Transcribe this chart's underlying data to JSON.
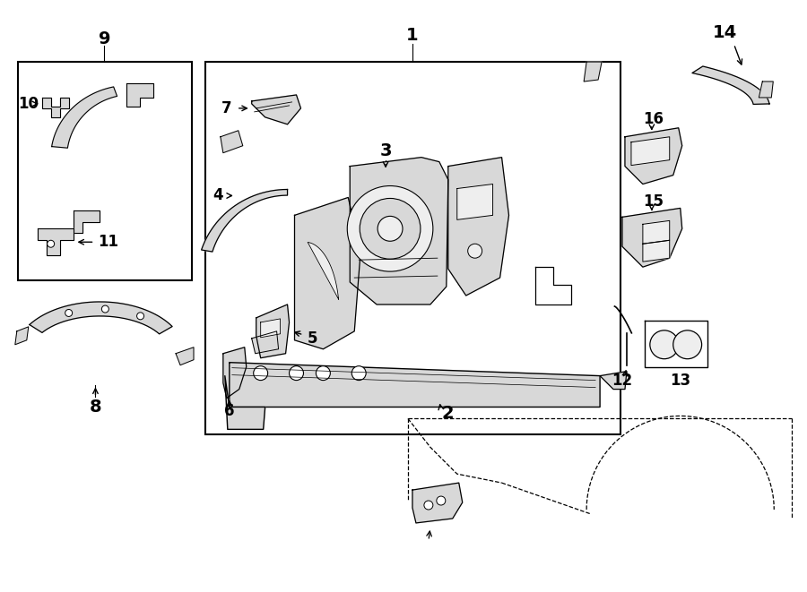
{
  "bg_color": "#ffffff",
  "lc": "#000000",
  "lw": 1.0,
  "gray_fill": "#d8d8d8",
  "light_fill": "#eeeeee",
  "fig_w": 9.0,
  "fig_h": 6.61,
  "dpi": 100
}
